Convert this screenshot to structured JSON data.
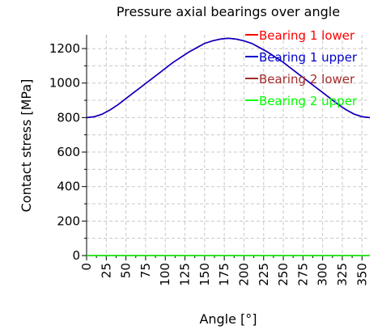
{
  "chart_data": {
    "type": "line",
    "title": "Pressure axial bearings over angle",
    "xlabel": "Angle [°]",
    "ylabel": "Contact stress [MPa]",
    "xlim": [
      0,
      360
    ],
    "ylim": [
      0,
      1280
    ],
    "x_ticks": [
      "0",
      "25",
      "50",
      "75",
      "100",
      "125",
      "150",
      "175",
      "200",
      "225",
      "250",
      "275",
      "300",
      "325",
      "350"
    ],
    "y_ticks": [
      "0",
      "200",
      "400",
      "600",
      "800",
      "1000",
      "1200"
    ],
    "grid": true,
    "legend_position": "top-right",
    "x": [
      0,
      10,
      20,
      30,
      40,
      50,
      60,
      70,
      80,
      90,
      100,
      110,
      120,
      130,
      140,
      150,
      160,
      170,
      180,
      190,
      200,
      210,
      220,
      230,
      240,
      250,
      260,
      270,
      280,
      290,
      300,
      310,
      320,
      330,
      340,
      350,
      360
    ],
    "series": [
      {
        "name": "Bearing 1 lower",
        "color": "#ff0000",
        "values": [
          800,
          805,
          820,
          845,
          875,
          910,
          945,
          980,
          1015,
          1050,
          1085,
          1120,
          1150,
          1180,
          1205,
          1230,
          1245,
          1255,
          1260,
          1255,
          1245,
          1230,
          1205,
          1180,
          1150,
          1120,
          1085,
          1050,
          1015,
          980,
          945,
          910,
          875,
          845,
          820,
          805,
          800
        ]
      },
      {
        "name": "Bearing 1 upper",
        "color": "#0000cc",
        "values": [
          800,
          805,
          820,
          845,
          875,
          910,
          945,
          980,
          1015,
          1050,
          1085,
          1120,
          1150,
          1180,
          1205,
          1230,
          1245,
          1255,
          1260,
          1255,
          1245,
          1230,
          1205,
          1180,
          1150,
          1120,
          1085,
          1050,
          1015,
          980,
          945,
          910,
          875,
          845,
          820,
          805,
          800
        ]
      },
      {
        "name": "Bearing 2 lower",
        "color": "#a52a2a",
        "values": [
          0,
          0,
          0,
          0,
          0,
          0,
          0,
          0,
          0,
          0,
          0,
          0,
          0,
          0,
          0,
          0,
          0,
          0,
          0,
          0,
          0,
          0,
          0,
          0,
          0,
          0,
          0,
          0,
          0,
          0,
          0,
          0,
          0,
          0,
          0,
          0,
          0
        ]
      },
      {
        "name": "Bearing 2 upper",
        "color": "#00ff00",
        "values": [
          0,
          0,
          0,
          0,
          0,
          0,
          0,
          0,
          0,
          0,
          0,
          0,
          0,
          0,
          0,
          0,
          0,
          0,
          0,
          0,
          0,
          0,
          0,
          0,
          0,
          0,
          0,
          0,
          0,
          0,
          0,
          0,
          0,
          0,
          0,
          0,
          0
        ]
      }
    ]
  }
}
